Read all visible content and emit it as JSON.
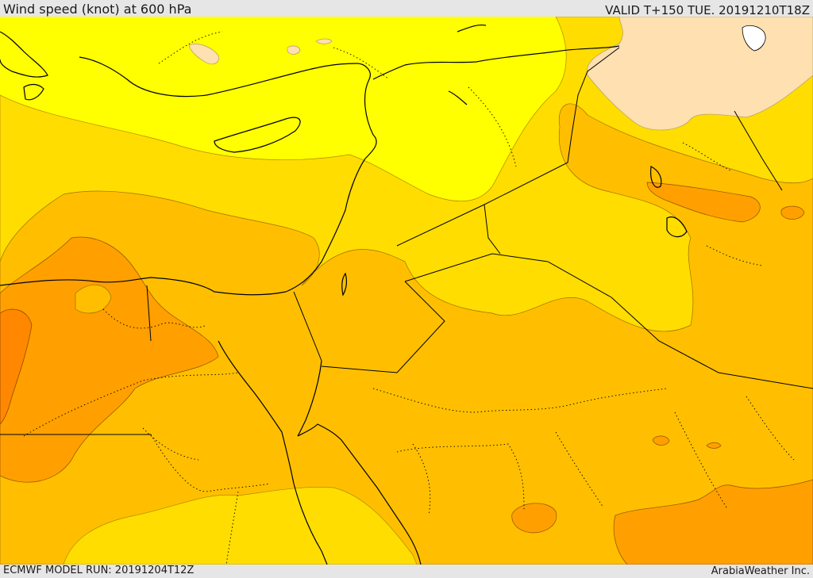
{
  "header": {
    "title": "Wind speed (knot) at 600 hPa",
    "valid_time": "VALID T+150 TUE. 20191210T18Z"
  },
  "footer": {
    "model_run": "ECMWF MODEL RUN: 20191204T12Z",
    "credit": "ArabiaWeather Inc."
  },
  "colors": {
    "band_light": "#ffff00",
    "band_mid": "#ffdd00",
    "band_strong": "#ffbf00",
    "band_stronger": "#ffa000",
    "band_strongest": "#ff8800",
    "band_calm": "#ffe0b0",
    "coastline": "#000000",
    "border": "#000000"
  }
}
